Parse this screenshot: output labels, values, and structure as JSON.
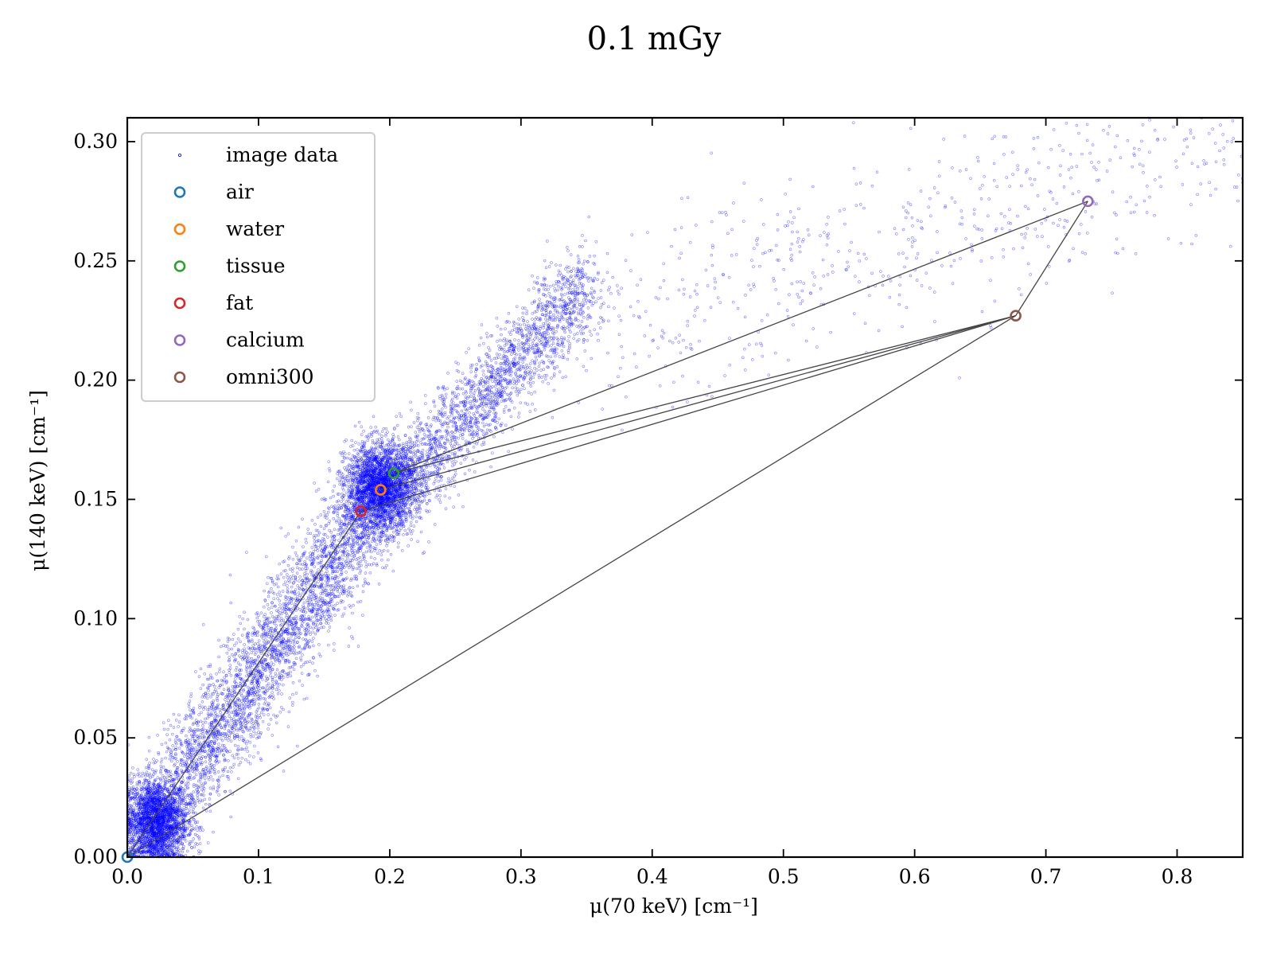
{
  "chart_data": {
    "type": "scatter",
    "title": "0.1 mGy",
    "xlabel": "μ(70 keV) [cm⁻¹]",
    "ylabel": "μ(140 keV) [cm⁻¹]",
    "xlim": [
      0.0,
      0.85
    ],
    "ylim": [
      0.0,
      0.31
    ],
    "x_ticks": [
      0.0,
      0.1,
      0.2,
      0.3,
      0.4,
      0.5,
      0.6,
      0.7,
      0.8
    ],
    "x_tick_labels": [
      "0.0",
      "0.1",
      "0.2",
      "0.3",
      "0.4",
      "0.5",
      "0.6",
      "0.7",
      "0.8"
    ],
    "y_ticks": [
      0.0,
      0.05,
      0.1,
      0.15,
      0.2,
      0.25,
      0.3
    ],
    "y_tick_labels": [
      "0.00",
      "0.05",
      "0.10",
      "0.15",
      "0.20",
      "0.25",
      "0.30"
    ],
    "grid": false,
    "legend_position": "top-left",
    "point_series": {
      "name": "image data",
      "color": "#0000ff",
      "clusters": [
        {
          "cx": 0.022,
          "cy": 0.015,
          "sx": 0.012,
          "sy": 0.009,
          "n": 2600
        },
        {
          "cx": 0.193,
          "cy": 0.155,
          "sx": 0.013,
          "sy": 0.009,
          "n": 2600
        }
      ],
      "bands": [
        {
          "x0": 0.04,
          "y0": 0.03,
          "x1": 0.19,
          "y1": 0.15,
          "spread": 0.012,
          "n": 3200
        },
        {
          "x0": 0.2,
          "y0": 0.15,
          "x1": 0.35,
          "y1": 0.24,
          "spread": 0.01,
          "n": 2200
        },
        {
          "x0": 0.35,
          "y0": 0.22,
          "x1": 0.85,
          "y1": 0.3,
          "spread": 0.022,
          "n": 650
        }
      ]
    },
    "materials": [
      {
        "name": "air",
        "x": 0.0,
        "y": 0.0,
        "color": "#1f77b4"
      },
      {
        "name": "water",
        "x": 0.193,
        "y": 0.154,
        "color": "#ff7f0e"
      },
      {
        "name": "tissue",
        "x": 0.203,
        "y": 0.161,
        "color": "#2ca02c"
      },
      {
        "name": "fat",
        "x": 0.178,
        "y": 0.145,
        "color": "#d62728"
      },
      {
        "name": "calcium",
        "x": 0.732,
        "y": 0.275,
        "color": "#9467bd"
      },
      {
        "name": "omni300",
        "x": 0.677,
        "y": 0.227,
        "color": "#8c564b"
      }
    ],
    "connecting_lines": [
      [
        "air",
        "fat"
      ],
      [
        "air",
        "omni300"
      ],
      [
        "calcium",
        "omni300"
      ],
      [
        "tissue",
        "calcium"
      ],
      [
        "tissue",
        "omni300"
      ],
      [
        "water",
        "omni300"
      ],
      [
        "fat",
        "omni300"
      ]
    ],
    "line_color": "#444444"
  }
}
